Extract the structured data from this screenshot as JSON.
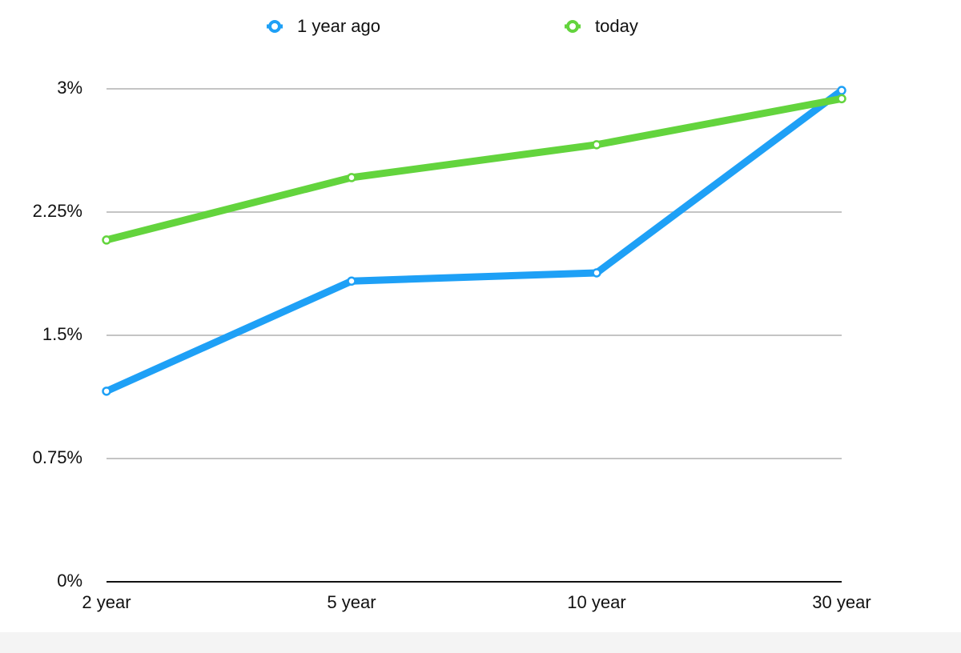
{
  "chart_data": {
    "type": "line",
    "categories": [
      "2 year",
      "5 year",
      "10 year",
      "30 year"
    ],
    "series": [
      {
        "name": "1 year ago",
        "color": "#1ea0f6",
        "values": [
          1.16,
          1.83,
          1.88,
          2.99
        ]
      },
      {
        "name": "today",
        "color": "#63d43d",
        "values": [
          2.08,
          2.46,
          2.66,
          2.94
        ]
      }
    ],
    "ylim": [
      0,
      3
    ],
    "yticks": [
      {
        "value": 0,
        "label": "0%"
      },
      {
        "value": 0.75,
        "label": "0.75%"
      },
      {
        "value": 1.5,
        "label": "1.5%"
      },
      {
        "value": 2.25,
        "label": "2.25%"
      },
      {
        "value": 3,
        "label": "3%"
      }
    ],
    "grid": true,
    "legend": "top"
  }
}
